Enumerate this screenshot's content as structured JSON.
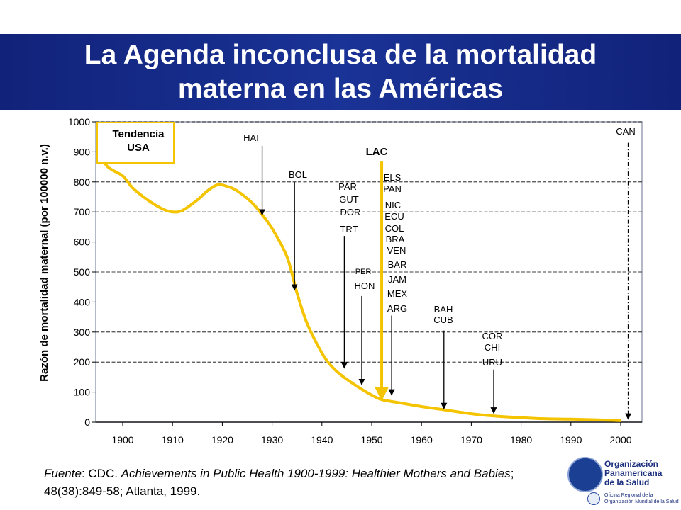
{
  "title": "La Agenda inconclusa de la mortalidad\nmaterna en las Américas",
  "colors": {
    "banner": "#1a3396",
    "trend_line": "#f5c400",
    "arrow": "#000000",
    "lac_arrow": "#f5c400",
    "legend_border": "#f5c400"
  },
  "source": {
    "prefix": "Fuente",
    "rest_plain": ": CDC. ",
    "title_italic": "Achievements in Public Health 1900-1999: Healthier Mothers and Babies",
    "tail": "; 48(38):849-58; Atlanta, 1999."
  },
  "logo": {
    "name_lines": [
      "Organización",
      "Panamericana",
      "de la Salud"
    ],
    "sub_lines": [
      "Oficina Regional de la",
      "Organización Mundial de la Salud"
    ],
    "icon": "paho-globe-icon"
  },
  "chart_data": {
    "type": "line",
    "title": "",
    "xlabel": "",
    "ylabel": "Razón de mortalidad maternal (por 100000 n.v.)",
    "xlim": [
      1900,
      2000
    ],
    "ylim": [
      0,
      1000
    ],
    "x_ticks": [
      1900,
      1910,
      1920,
      1930,
      1940,
      1950,
      1960,
      1970,
      1980,
      1990,
      2000
    ],
    "y_ticks": [
      0,
      100,
      200,
      300,
      400,
      500,
      600,
      700,
      800,
      900,
      1000
    ],
    "legend": {
      "lines": [
        "Tendencia",
        "USA"
      ],
      "placement": "top-left"
    },
    "series": [
      {
        "name": "Tendencia USA",
        "points": [
          [
            1895,
            900
          ],
          [
            1897,
            850
          ],
          [
            1900,
            820
          ],
          [
            1902,
            780
          ],
          [
            1905,
            740
          ],
          [
            1908,
            710
          ],
          [
            1910,
            700
          ],
          [
            1912,
            705
          ],
          [
            1915,
            740
          ],
          [
            1917,
            770
          ],
          [
            1919,
            790
          ],
          [
            1921,
            785
          ],
          [
            1923,
            770
          ],
          [
            1926,
            730
          ],
          [
            1928,
            690
          ],
          [
            1930,
            645
          ],
          [
            1933,
            550
          ],
          [
            1935,
            430
          ],
          [
            1937,
            330
          ],
          [
            1940,
            230
          ],
          [
            1942,
            185
          ],
          [
            1944,
            155
          ],
          [
            1947,
            120
          ],
          [
            1950,
            90
          ],
          [
            1952,
            75
          ],
          [
            1955,
            66
          ],
          [
            1960,
            52
          ],
          [
            1965,
            40
          ],
          [
            1970,
            28
          ],
          [
            1975,
            20
          ],
          [
            1980,
            15
          ],
          [
            1985,
            11
          ],
          [
            1990,
            10
          ],
          [
            1995,
            8
          ],
          [
            2000,
            5
          ]
        ]
      }
    ],
    "annotations": [
      {
        "labels": [
          "HAI"
        ],
        "x": 1928,
        "y_top": 920,
        "y_tip": 690
      },
      {
        "labels": [
          "BOL"
        ],
        "x": 1934.5,
        "y_top": 800,
        "y_tip": 440
      },
      {
        "labels": [
          "PAR",
          "GUT",
          "DOR",
          "TRT"
        ],
        "x": 1944.5,
        "y_top": 620,
        "y_tip": 180
      },
      {
        "labels": [
          "PER",
          "HON"
        ],
        "x": 1948,
        "y_top": 420,
        "y_tip": 125
      },
      {
        "labels": [
          "LAC"
        ],
        "x": 1952,
        "y_top": 870,
        "y_tip": 75,
        "highlight": true
      },
      {
        "labels": [
          "ELS",
          "PAN",
          "NIC",
          "ECU",
          "COL",
          "BRA",
          "VEN",
          "BAR",
          "JAM",
          "MEX",
          "ARG"
        ],
        "x": 1954,
        "y_top": 355,
        "y_tip": 90
      },
      {
        "labels": [
          "BAH",
          "CUB"
        ],
        "x": 1964.5,
        "y_top": 305,
        "y_tip": 45
      },
      {
        "labels": [
          "COR",
          "CHI",
          "URU"
        ],
        "x": 1974.5,
        "y_top": 175,
        "y_tip": 30
      },
      {
        "labels": [
          "CAN"
        ],
        "x": 2001.5,
        "y_top": 930,
        "y_tip": 10,
        "dashed": true
      }
    ]
  }
}
